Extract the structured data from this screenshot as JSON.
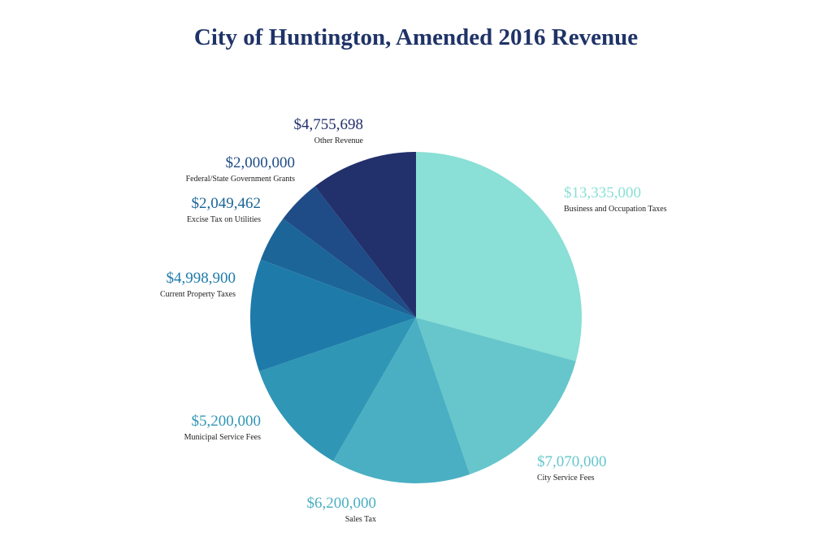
{
  "chart_data": {
    "type": "pie",
    "title": "City of Huntington, Amended 2016 Revenue",
    "slices": [
      {
        "label": "Business and Occupation Taxes",
        "value": 13335000,
        "value_text": "$13,335,000",
        "color": "#8adfd6"
      },
      {
        "label": "City Service Fees",
        "value": 7070000,
        "value_text": "$7,070,000",
        "color": "#66c6cb"
      },
      {
        "label": "Sales Tax",
        "value": 6200000,
        "value_text": "$6,200,000",
        "color": "#4aafc2"
      },
      {
        "label": "Municipal Service Fees",
        "value": 5200000,
        "value_text": "$5,200,000",
        "color": "#3096b5"
      },
      {
        "label": "Current Property Taxes",
        "value": 4998900,
        "value_text": "$4,998,900",
        "color": "#1e7ba9"
      },
      {
        "label": "Excise Tax on Utilities",
        "value": 2049462,
        "value_text": "$2,049,462",
        "color": "#1c6598"
      },
      {
        "label": "Federal/State Government Grants",
        "value": 2000000,
        "value_text": "$2,000,000",
        "color": "#1f4c86"
      },
      {
        "label": "Other Revenue",
        "value": 4755698,
        "value_text": "$4,755,698",
        "color": "#22306c"
      }
    ],
    "start_angle_deg": 0,
    "direction": "clockwise",
    "legend": "none"
  }
}
